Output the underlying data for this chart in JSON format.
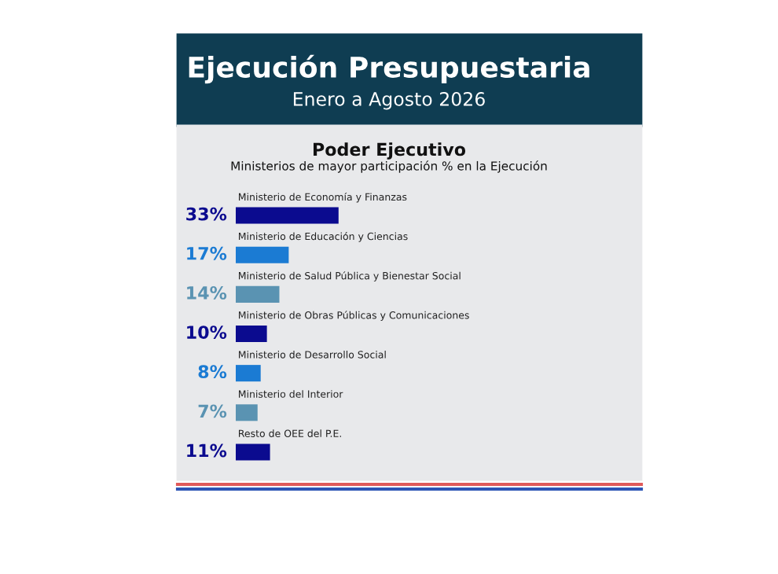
{
  "chart_data": {
    "type": "bar",
    "orientation": "horizontal",
    "title": "Ejecución Presupuestaria",
    "subtitle": "Enero a Agosto 2026",
    "annotations": [
      "Poder Ejecutivo",
      "Ministerios de mayor participación % en la Ejecución"
    ],
    "categories": [
      "Ministerio de Economía y Finanzas",
      "Ministerio de Educación y Ciencias",
      "Ministerio de Salud Pública y Bienestar Social",
      "Ministerio de Obras Públicas y Comunicaciones",
      "Ministerio de Desarrollo Social",
      "Ministerio del Interior",
      "Resto de OEE del P.E."
    ],
    "values": [
      33,
      17,
      14,
      10,
      8,
      7,
      11
    ],
    "value_labels": [
      "33%",
      "17%",
      "14%",
      "10%",
      "8%",
      "7%",
      "11%"
    ],
    "colors": [
      "#0b0b8f",
      "#1b7bd3",
      "#5a93b2",
      "#0b0b8f",
      "#1b7bd3",
      "#5a93b2",
      "#0b0b8f"
    ],
    "legend": false
  }
}
